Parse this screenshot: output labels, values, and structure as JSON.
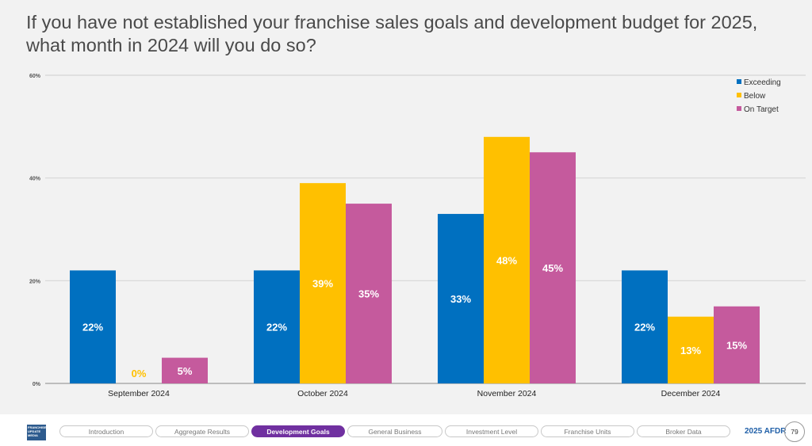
{
  "chart_data": {
    "type": "bar",
    "title": "If you have not established your franchise sales goals and development budget for 2025, what month in 2024 will you do so?",
    "categories": [
      "September 2024",
      "October 2024",
      "November 2024",
      "December 2024"
    ],
    "series": [
      {
        "name": "Exceeding",
        "color": "#0070c0",
        "values": [
          22,
          22,
          33,
          22
        ]
      },
      {
        "name": "Below",
        "color": "#ffc000",
        "values": [
          0,
          39,
          48,
          13
        ]
      },
      {
        "name": "On Target",
        "color": "#c55a9d",
        "values": [
          5,
          35,
          45,
          15
        ]
      }
    ],
    "yticks": [
      "0%",
      "20%",
      "40%",
      "60%"
    ],
    "ylim": [
      0,
      60
    ],
    "grid": true,
    "legend": "top-right"
  },
  "footer": {
    "logo": "FRANCHISE UPDATE MEDIA",
    "nav": [
      "Introduction",
      "Aggregate Results",
      "Development Goals",
      "General Business",
      "Investment Level",
      "Franchise Units",
      "Broker Data"
    ],
    "active": "Development Goals",
    "report": "2025 AFDR",
    "page": "79"
  }
}
